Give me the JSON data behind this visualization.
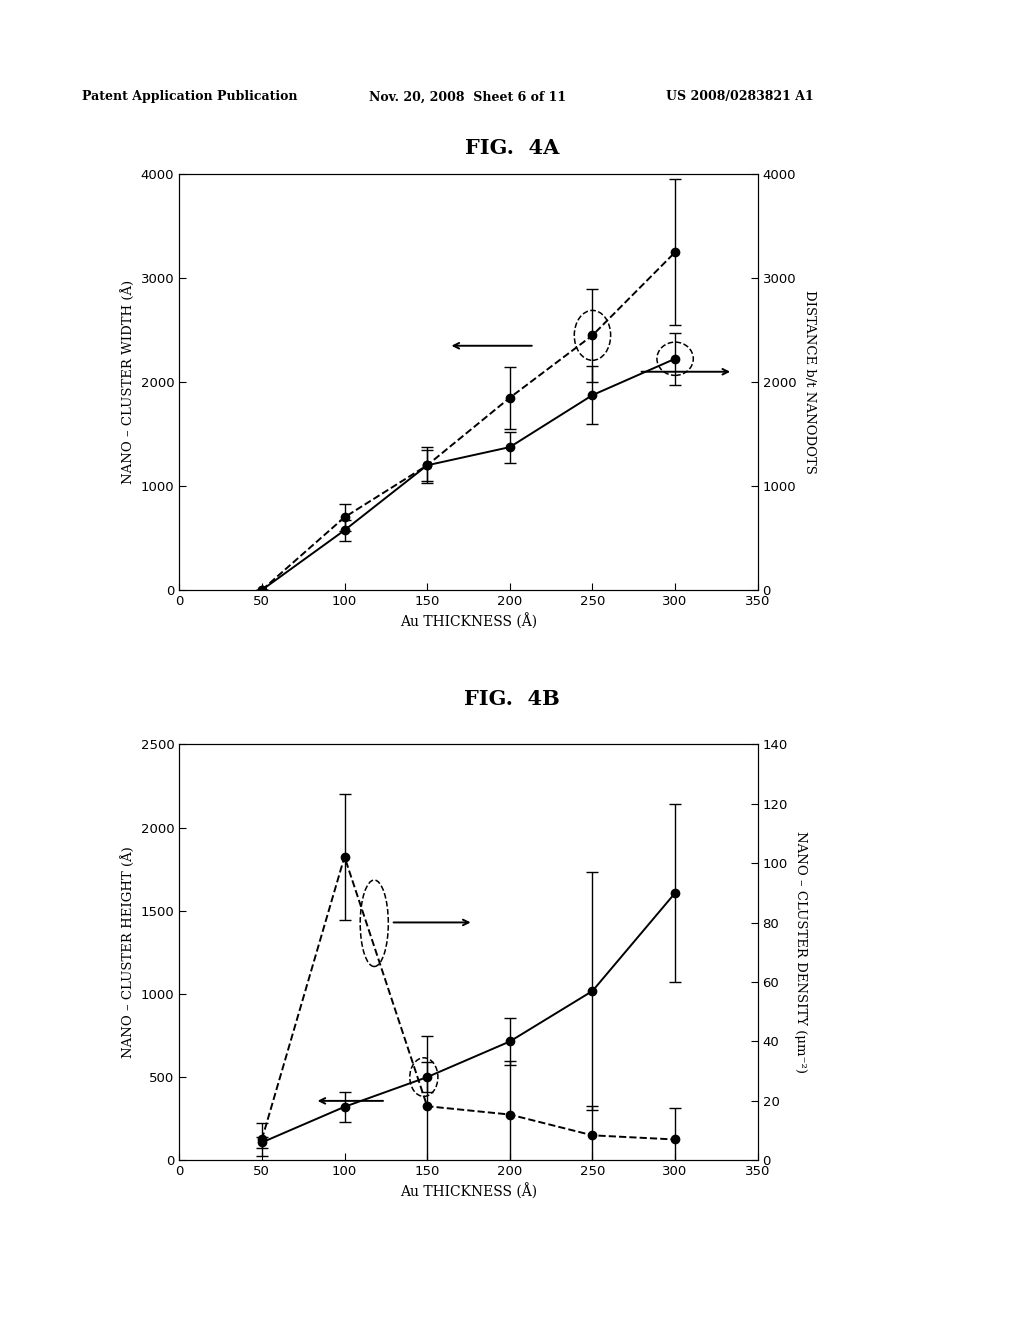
{
  "fig4a": {
    "title": "FIG.  4A",
    "x": [
      50,
      100,
      150,
      200,
      250,
      300
    ],
    "dashed_y": [
      0,
      700,
      1200,
      1850,
      2450,
      3250
    ],
    "dashed_yerr": [
      0,
      130,
      150,
      300,
      450,
      700
    ],
    "solid_y": [
      0,
      575,
      1200,
      1375,
      1875,
      2225
    ],
    "solid_yerr": [
      0,
      100,
      175,
      150,
      280,
      250
    ],
    "xlim": [
      0,
      350
    ],
    "ylim_left": [
      0,
      4000
    ],
    "ylim_right": [
      0,
      4000
    ],
    "xlabel": "Au THICKNESS (Å)",
    "ylabel_left": "NANO – CLUSTER WIDTH (Å)",
    "ylabel_right": "DISTANCE b/t NANODOTS",
    "xticks": [
      0,
      50,
      100,
      150,
      200,
      250,
      300,
      350
    ],
    "yticks_left": [
      0,
      1000,
      2000,
      3000,
      4000
    ],
    "yticks_right": [
      0,
      1000,
      2000,
      3000,
      4000
    ]
  },
  "fig4b": {
    "title": "FIG.  4B",
    "x": [
      50,
      100,
      150,
      200,
      250,
      300
    ],
    "dashed_y": [
      125,
      1825,
      325,
      275,
      150,
      125
    ],
    "dashed_yerr": [
      100,
      380,
      420,
      320,
      175,
      190
    ],
    "solid_y_right": [
      6,
      18,
      28,
      40,
      57,
      90
    ],
    "solid_yerr_right": [
      2,
      5,
      5,
      8,
      40,
      30
    ],
    "xlim": [
      0,
      350
    ],
    "ylim_left": [
      0,
      2500
    ],
    "ylim_right": [
      0,
      140
    ],
    "xlabel": "Au THICKNESS (Å)",
    "ylabel_left": "NANO – CLUSTER HEIGHT (Å)",
    "ylabel_right": "NANO – CLUSTER DENSITY (μm⁻²)",
    "xticks": [
      0,
      50,
      100,
      150,
      200,
      250,
      300,
      350
    ],
    "yticks_left": [
      0,
      500,
      1000,
      1500,
      2000,
      2500
    ],
    "yticks_right": [
      0,
      20,
      40,
      60,
      80,
      100,
      120,
      140
    ]
  },
  "header_left": "Patent Application Publication",
  "header_mid": "Nov. 20, 2008  Sheet 6 of 11",
  "header_right": "US 2008/0283821 A1",
  "bg_color": "#ffffff"
}
